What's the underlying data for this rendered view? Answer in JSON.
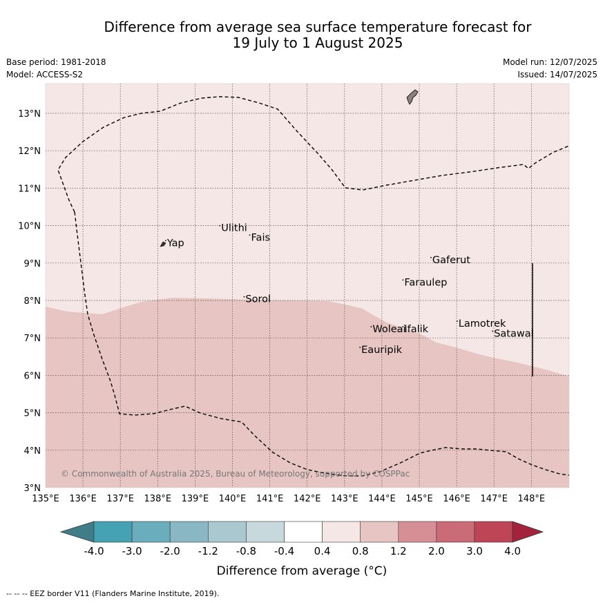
{
  "header": {
    "title_line1": "Difference from average sea surface temperature forecast for",
    "title_line2": "19 July to 1 August 2025",
    "base_period": "Base period: 1981-2018",
    "model": "Model: ACCESS-S2",
    "model_run": "Model run: 12/07/2025",
    "issued": "Issued: 14/07/2025"
  },
  "map": {
    "lat_labels": [
      "3°N",
      "4°N",
      "5°N",
      "6°N",
      "7°N",
      "8°N",
      "9°N",
      "10°N",
      "11°N",
      "12°N",
      "13°N"
    ],
    "lon_labels": [
      "135°E",
      "136°E",
      "137°E",
      "138°E",
      "139°E",
      "140°E",
      "141°E",
      "142°E",
      "143°E",
      "144°E",
      "145°E",
      "146°E",
      "147°E",
      "148°E"
    ],
    "places": [
      {
        "name": "Ulithi",
        "lon": 139.7,
        "lat": 9.85
      },
      {
        "name": "Fais",
        "lon": 140.5,
        "lat": 9.6
      },
      {
        "name": "Yap",
        "lon": 138.25,
        "lat": 9.45
      },
      {
        "name": "Sorol",
        "lon": 140.35,
        "lat": 7.95
      },
      {
        "name": "Gaferut",
        "lon": 145.35,
        "lat": 9.0
      },
      {
        "name": "Faraulep",
        "lon": 144.6,
        "lat": 8.4
      },
      {
        "name": "Woleai",
        "lon": 143.75,
        "lat": 7.15
      },
      {
        "name": "Ifalik",
        "lon": 144.6,
        "lat": 7.15
      },
      {
        "name": "Lamotrek",
        "lon": 146.05,
        "lat": 7.3
      },
      {
        "name": "Satawal",
        "lon": 147.0,
        "lat": 7.03
      },
      {
        "name": "Eauripik",
        "lon": 143.45,
        "lat": 6.6
      }
    ],
    "copyright": "© Commonwealth of Australia 2025, Bureau of Meteorology, supported by COSPPac",
    "colors": {
      "band_0_4_to_0_8": "#f4e7e6",
      "band_0_8_to_1_2": "#e6c5c2",
      "land": "#8c7f80"
    }
  },
  "colorbar": {
    "tick_labels": [
      "-4.0",
      "-3.0",
      "-2.0",
      "-1.2",
      "-0.8",
      "-0.4",
      "0.4",
      "0.8",
      "1.2",
      "2.0",
      "3.0",
      "4.0"
    ],
    "colors": [
      "#3f7d88",
      "#44a2b3",
      "#6aadbc",
      "#89b8c4",
      "#a9c8cf",
      "#c8d9de",
      "#ffffff",
      "#f4e7e6",
      "#e6c5c2",
      "#d58f95",
      "#cb6b77",
      "#bd4556",
      "#a3233d"
    ],
    "label": "Difference from average (°C)"
  },
  "footer": {
    "legend_note": "--  --  -- EEZ border V11 (Flanders Marine Institute, 2019)."
  }
}
